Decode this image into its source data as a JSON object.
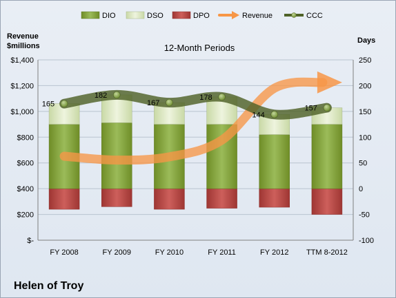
{
  "chart_data": {
    "type": "bar",
    "title": "12-Month Periods",
    "company": "Helen of Troy",
    "left_axis_label_line1": "Revenue",
    "left_axis_label_line2": "$millions",
    "right_axis_label": "Days",
    "categories": [
      "FY 2008",
      "FY 2009",
      "FY 2010",
      "FY 2011",
      "FY 2012",
      "TTM 8-2012"
    ],
    "left_axis": {
      "min": 0,
      "max": 1400,
      "step": 200,
      "tick_labels": [
        "$-",
        "$200",
        "$400",
        "$600",
        "$800",
        "$1,000",
        "$1,200",
        "$1,400"
      ]
    },
    "right_axis": {
      "min": -100,
      "max": 250,
      "step": 50
    },
    "series": [
      {
        "name": "DIO",
        "axis": "right",
        "kind": "stacked-bar",
        "color": "#7a9a2e",
        "values": [
          125,
          128,
          125,
          125,
          105,
          125
        ]
      },
      {
        "name": "DSO",
        "axis": "right",
        "kind": "stacked-bar",
        "color": "#d7e4bd",
        "values": [
          40,
          54,
          42,
          53,
          39,
          32
        ]
      },
      {
        "name": "DPO",
        "axis": "right",
        "kind": "bar-negative",
        "color": "#c0504d",
        "values": [
          -40,
          -35,
          -40,
          -38,
          -36,
          -50
        ]
      },
      {
        "name": "Revenue",
        "axis": "left",
        "kind": "line-arrow",
        "color": "#f79646",
        "values": [
          652,
          622,
          647,
          777,
          1180,
          1225
        ]
      },
      {
        "name": "CCC",
        "axis": "right",
        "kind": "line-markers",
        "color": "#4f6228",
        "values": [
          165,
          182,
          167,
          178,
          144,
          157
        ]
      }
    ],
    "ccc_labels": [
      "165",
      "182",
      "167",
      "178",
      "144",
      "157"
    ],
    "grid": true,
    "legend_position": "top"
  }
}
